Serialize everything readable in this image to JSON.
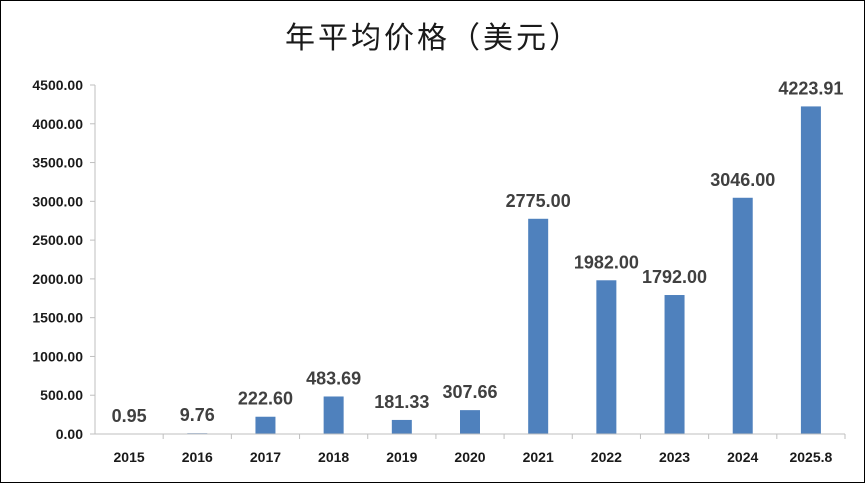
{
  "chart_data": {
    "type": "bar",
    "title": "年平均价格（美元）",
    "categories": [
      "2015",
      "2016",
      "2017",
      "2018",
      "2019",
      "2020",
      "2021",
      "2022",
      "2023",
      "2024",
      "2025.8"
    ],
    "values": [
      0.95,
      9.76,
      222.6,
      483.69,
      181.33,
      307.66,
      2775.0,
      1982.0,
      1792.0,
      3046.0,
      4223.91
    ],
    "data_labels": [
      "0.95",
      "9.76",
      "222.60",
      "483.69",
      "181.33",
      "307.66",
      "2775.00",
      "1982.00",
      "1792.00",
      "3046.00",
      "4223.91"
    ],
    "ylim": [
      0,
      4500
    ],
    "yticks": [
      0,
      500,
      1000,
      1500,
      2000,
      2500,
      3000,
      3500,
      4000,
      4500
    ],
    "ytick_labels": [
      "0.00",
      "500.00",
      "1000.00",
      "1500.00",
      "2000.00",
      "2500.00",
      "3000.00",
      "3500.00",
      "4000.00",
      "4500.00"
    ],
    "xlabel": "",
    "ylabel": "",
    "grid": false,
    "legend": "none",
    "colors": {
      "bar": "#4f81bd",
      "axis": "#bfbfbf",
      "text": "#1a1a1a",
      "label": "#404040"
    }
  }
}
